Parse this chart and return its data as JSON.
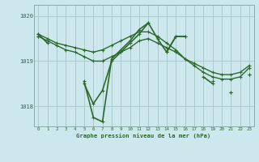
{
  "title": "Graphe pression niveau de la mer (hPa)",
  "background_color": "#cce8ec",
  "grid_color": "#aacccc",
  "line_color": "#2d6a2d",
  "x_ticks": [
    0,
    1,
    2,
    3,
    4,
    5,
    6,
    7,
    8,
    9,
    10,
    11,
    12,
    13,
    14,
    15,
    16,
    17,
    18,
    19,
    20,
    21,
    22,
    23
  ],
  "ylim": [
    1017.55,
    1020.25
  ],
  "yticks": [
    1018,
    1019,
    1020
  ],
  "series": [
    {
      "y": [
        1019.6,
        1019.5,
        1019.4,
        1019.35,
        1019.3,
        1019.25,
        1019.2,
        1019.25,
        1019.35,
        1019.45,
        1019.55,
        1019.65,
        1019.65,
        1019.55,
        1019.4,
        1019.25,
        1019.05,
        1018.9,
        1018.75,
        1018.65,
        1018.6,
        1018.6,
        1018.65,
        1018.85
      ],
      "lw": 1.0
    },
    {
      "y": [
        1019.55,
        1019.45,
        1019.35,
        1019.25,
        1019.2,
        1019.1,
        1019.0,
        1019.0,
        1019.1,
        1019.2,
        1019.3,
        1019.45,
        1019.5,
        1019.4,
        1019.3,
        1019.2,
        1019.05,
        1018.95,
        1018.85,
        1018.75,
        1018.7,
        1018.7,
        1018.75,
        1018.9
      ],
      "lw": 1.0
    },
    {
      "y": [
        1019.6,
        1019.4,
        null,
        null,
        null,
        1018.55,
        1017.75,
        1017.65,
        1019.05,
        1019.25,
        1019.45,
        1019.7,
        1019.85,
        1019.5,
        1019.2,
        1019.55,
        1019.55,
        null,
        null,
        1018.55,
        null,
        1018.3,
        null,
        1018.7
      ],
      "lw": 1.2
    },
    {
      "y": [
        1019.55,
        null,
        null,
        null,
        null,
        1018.5,
        1018.05,
        1018.35,
        1019.0,
        1019.2,
        1019.4,
        1019.6,
        1019.85,
        null,
        1019.2,
        1019.55,
        1019.55,
        null,
        1018.65,
        1018.5,
        null,
        1018.3,
        null,
        1018.7
      ],
      "lw": 1.2
    }
  ]
}
